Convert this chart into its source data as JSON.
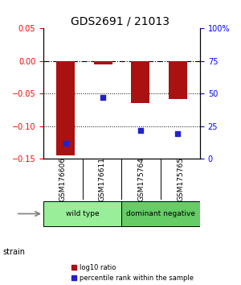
{
  "title": "GDS2691 / 21013",
  "samples": [
    "GSM176606",
    "GSM176611",
    "GSM175764",
    "GSM175765"
  ],
  "log10_ratio": [
    -0.145,
    -0.005,
    -0.065,
    -0.058
  ],
  "percentile_rank": [
    0.12,
    0.47,
    0.22,
    0.19
  ],
  "left_ylim": [
    -0.15,
    0.05
  ],
  "right_ylim": [
    0,
    100
  ],
  "left_yticks": [
    -0.15,
    -0.1,
    -0.05,
    0,
    0.05
  ],
  "right_yticks": [
    0,
    25,
    50,
    75,
    100
  ],
  "right_yticklabels": [
    "0",
    "25",
    "50",
    "75",
    "100%"
  ],
  "hline_y": 0,
  "dotted_lines": [
    -0.05,
    -0.1
  ],
  "bar_color": "#aa1111",
  "dot_color": "#2222cc",
  "bar_width": 0.5,
  "groups": [
    {
      "label": "wild type",
      "samples": [
        0,
        1
      ],
      "color": "#99ee99"
    },
    {
      "label": "dominant negative",
      "samples": [
        2,
        3
      ],
      "color": "#66cc66"
    }
  ],
  "strain_label": "strain",
  "legend_ratio_label": "log10 ratio",
  "legend_pct_label": "percentile rank within the sample",
  "background_color": "#ffffff"
}
